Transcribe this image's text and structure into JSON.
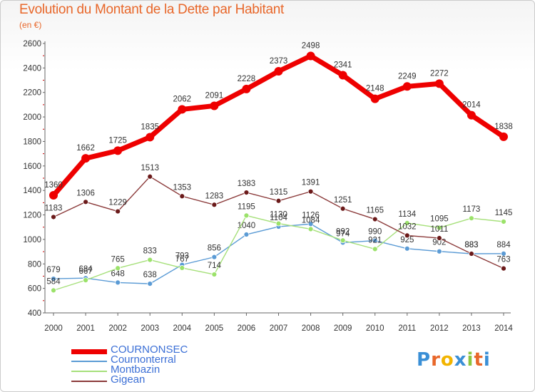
{
  "title": "Evolution du Montant de la Dette par Habitant",
  "subtitle": "(en €)",
  "logo": "Proxiti",
  "chart_data": {
    "type": "line",
    "x": [
      "2000",
      "2001",
      "2002",
      "2003",
      "2004",
      "2005",
      "2006",
      "2007",
      "2008",
      "2009",
      "2010",
      "2011",
      "2012",
      "2013",
      "2014"
    ],
    "ylim": [
      400,
      2600
    ],
    "yticks": [
      400,
      600,
      800,
      1000,
      1200,
      1400,
      1600,
      1800,
      2000,
      2200,
      2400,
      2600
    ],
    "grid": false,
    "legend_position": "bottom-left",
    "series": [
      {
        "name": "COURNONSEC",
        "color": "#ee0000",
        "highlight": true,
        "values": [
          1360,
          1662,
          1725,
          1835,
          2062,
          2091,
          2228,
          2373,
          2498,
          2341,
          2148,
          2249,
          2272,
          2014,
          1838
        ]
      },
      {
        "name": "Cournonterral",
        "color": "#5b9bd5",
        "marker": "#5b9bd5",
        "values": [
          679,
          684,
          648,
          638,
          793,
          856,
          1040,
          1104,
          1126,
          974,
          990,
          925,
          902,
          883,
          884
        ]
      },
      {
        "name": "Montbazin",
        "color": "#a6e07a",
        "marker": "#9be26a",
        "values": [
          584,
          667,
          765,
          833,
          767,
          714,
          1195,
          1130,
          1084,
          992,
          921,
          1134,
          1095,
          1173,
          1145
        ]
      },
      {
        "name": "Gigean",
        "color": "#8b3a3a",
        "marker": "#6b1a1a",
        "values": [
          1183,
          1306,
          1229,
          1513,
          1353,
          1283,
          1383,
          1315,
          1391,
          1251,
          1165,
          1032,
          1011,
          883,
          763
        ]
      }
    ]
  }
}
